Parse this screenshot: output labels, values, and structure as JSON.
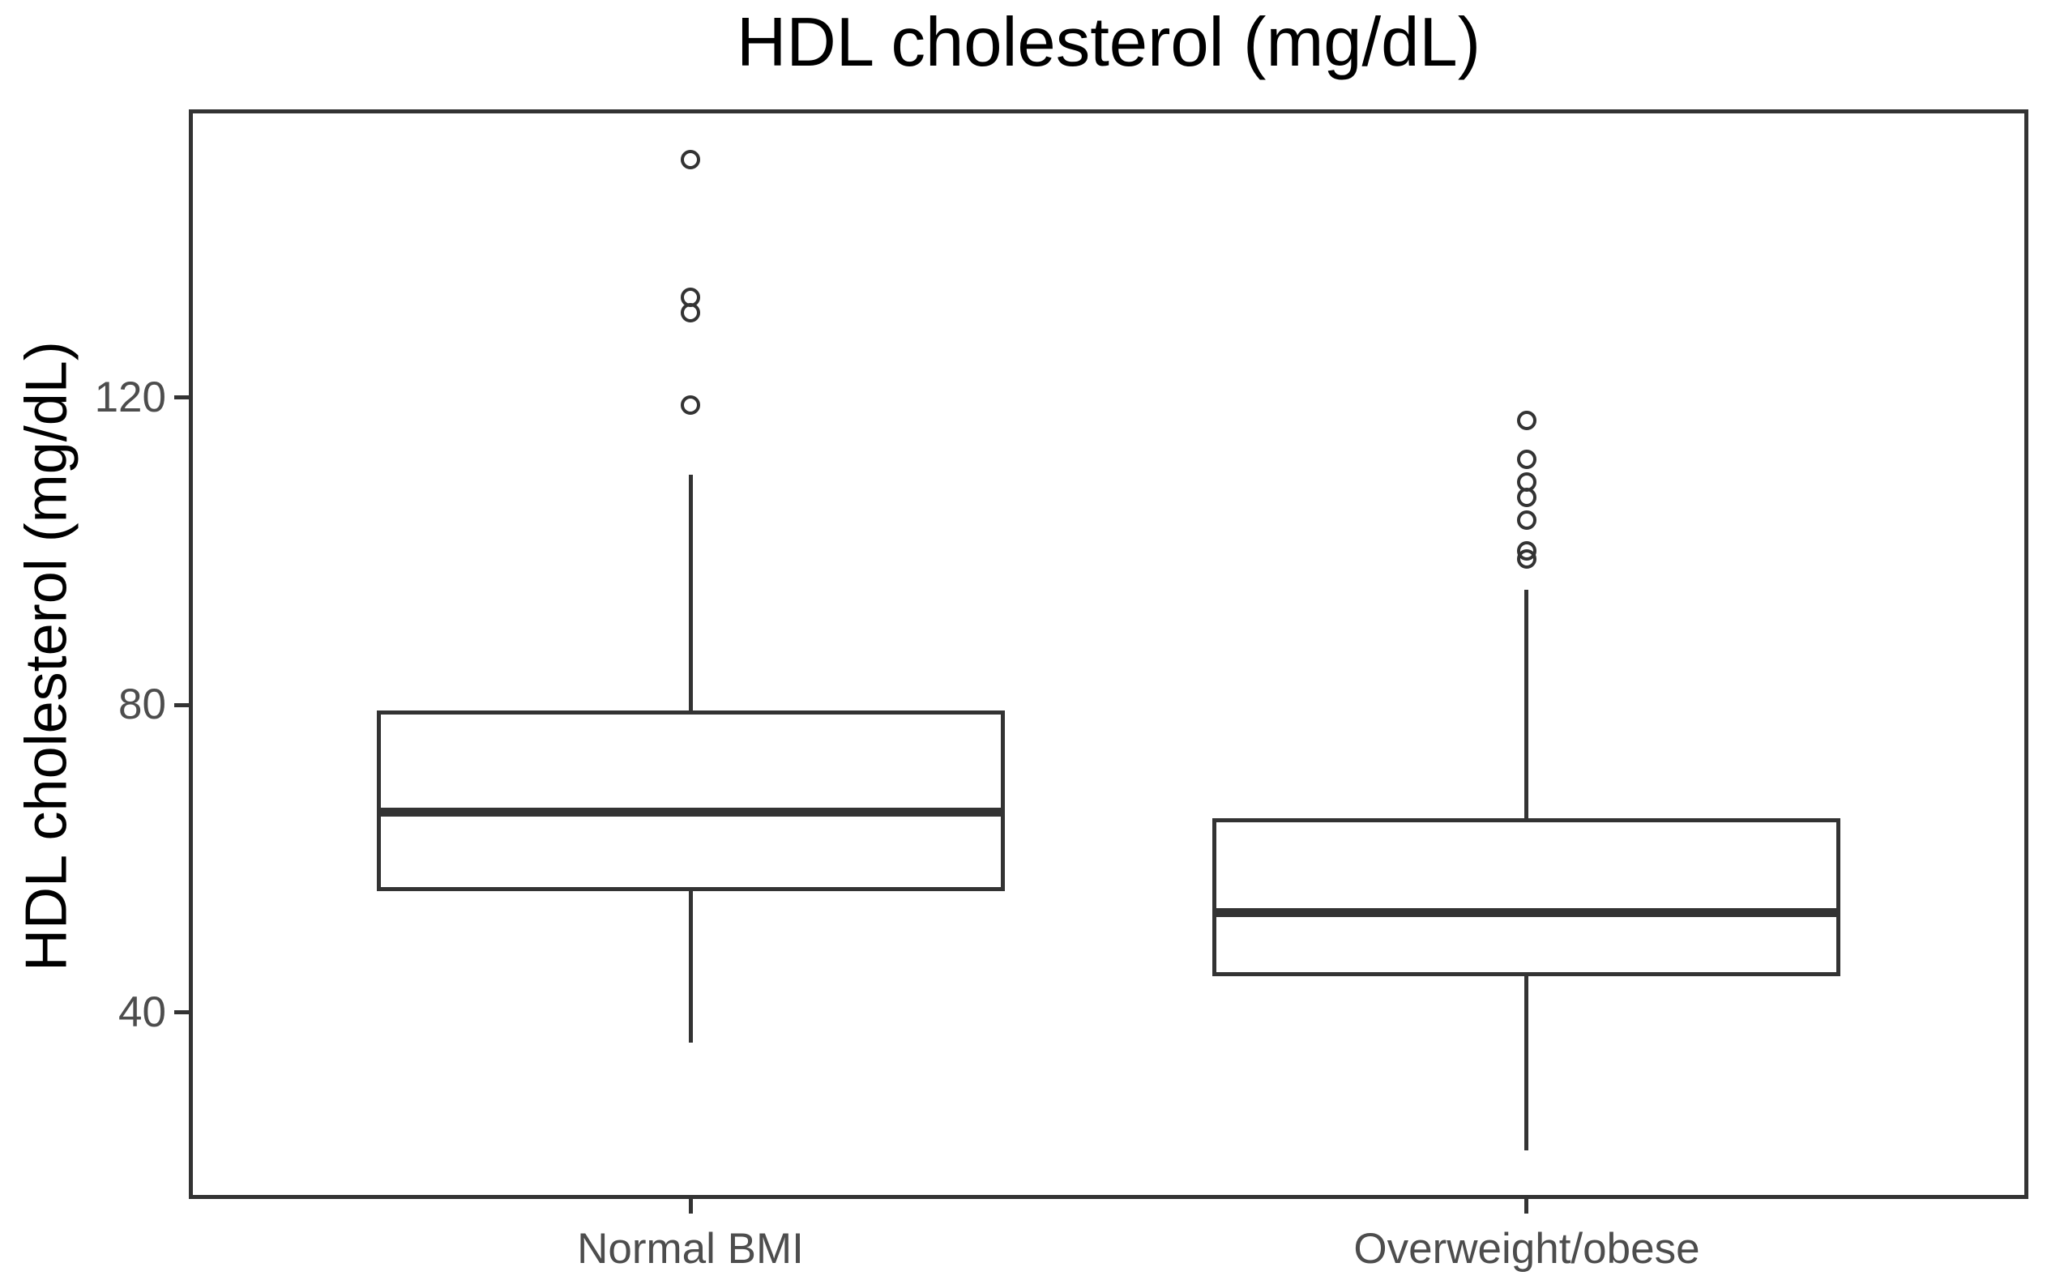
{
  "title": "HDL cholesterol (mg/dL)",
  "y_axis": {
    "label": "HDL cholesterol (mg/dL)",
    "ticks": [
      40,
      80,
      120
    ],
    "ylim": [
      15.7,
      157.5
    ]
  },
  "x_axis": {
    "categories": [
      "Normal BMI",
      "Overweight/obese"
    ]
  },
  "colors": {
    "line": "#333333",
    "title_text": "#000000",
    "tick_text": "#4d4d4d",
    "background": "#ffffff"
  },
  "chart_data": {
    "type": "boxplot",
    "title": "HDL cholesterol (mg/dL)",
    "xlabel": "",
    "ylabel": "HDL cholesterol (mg/dL)",
    "ylim": [
      15.7,
      157.5
    ],
    "yticks": [
      40,
      80,
      120
    ],
    "grid": false,
    "legend": false,
    "categories": [
      "Normal BMI",
      "Overweight/obese"
    ],
    "series": [
      {
        "category": "Normal BMI",
        "whisker_low": 36,
        "q1": 56,
        "median": 66,
        "q3": 79,
        "whisker_high": 110,
        "outliers": [
          151,
          133,
          131,
          119
        ]
      },
      {
        "category": "Overweight/obese",
        "whisker_low": 22,
        "q1": 45,
        "median": 53,
        "q3": 65,
        "whisker_high": 95,
        "outliers": [
          117,
          112,
          109,
          107,
          104,
          100,
          99
        ]
      }
    ]
  }
}
